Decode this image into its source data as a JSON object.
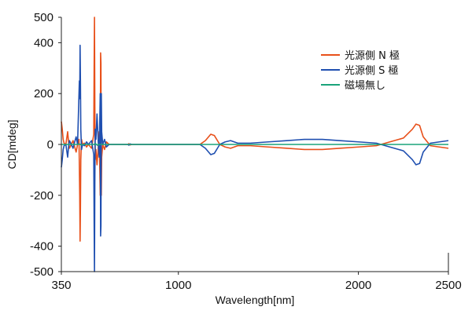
{
  "chart_data": {
    "type": "line",
    "title": "",
    "xlabel": "Wavelength[nm]",
    "ylabel": "CD[mdeg]",
    "xlim": [
      350,
      2500
    ],
    "ylim": [
      -500,
      500
    ],
    "x_ticks": [
      350,
      1000,
      2000,
      2500
    ],
    "x_tick_labels": [
      "350",
      "1000",
      "2000",
      "2500"
    ],
    "y_ticks": [
      500,
      400,
      200,
      0,
      -200,
      -400,
      -500
    ],
    "y_tick_labels": [
      "500",
      "400",
      "200",
      "0",
      "-200",
      "-400",
      "-500"
    ],
    "grid": false,
    "legend_position": "top-right",
    "series": [
      {
        "name": "光源側 N 極",
        "color": "#e8501a",
        "points": [
          [
            350,
            90
          ],
          [
            355,
            60
          ],
          [
            360,
            20
          ],
          [
            365,
            5
          ],
          [
            375,
            0
          ],
          [
            385,
            50
          ],
          [
            390,
            10
          ],
          [
            395,
            -15
          ],
          [
            405,
            0
          ],
          [
            415,
            15
          ],
          [
            420,
            0
          ],
          [
            432,
            -30
          ],
          [
            440,
            0
          ],
          [
            448,
            20
          ],
          [
            452,
            -200
          ],
          [
            454,
            -380
          ],
          [
            456,
            -250
          ],
          [
            458,
            -60
          ],
          [
            462,
            20
          ],
          [
            468,
            0
          ],
          [
            478,
            5
          ],
          [
            490,
            -10
          ],
          [
            500,
            0
          ],
          [
            518,
            -15
          ],
          [
            522,
            5
          ],
          [
            530,
            40
          ],
          [
            532,
            300
          ],
          [
            534,
            500
          ],
          [
            536,
            150
          ],
          [
            538,
            -60
          ],
          [
            542,
            -20
          ],
          [
            548,
            -80
          ],
          [
            555,
            -10
          ],
          [
            560,
            50
          ],
          [
            566,
            -200
          ],
          [
            568,
            360
          ],
          [
            570,
            320
          ],
          [
            572,
            -200
          ],
          [
            574,
            -50
          ],
          [
            580,
            0
          ],
          [
            590,
            -20
          ],
          [
            600,
            10
          ],
          [
            615,
            0
          ],
          [
            650,
            0
          ],
          [
            700,
            0
          ],
          [
            720,
            0
          ],
          [
            725,
            3
          ],
          [
            732,
            -2
          ],
          [
            740,
            0
          ],
          [
            850,
            0
          ],
          [
            1000,
            0
          ],
          [
            1120,
            0
          ],
          [
            1150,
            15
          ],
          [
            1180,
            40
          ],
          [
            1200,
            35
          ],
          [
            1230,
            0
          ],
          [
            1260,
            -10
          ],
          [
            1290,
            -15
          ],
          [
            1330,
            -5
          ],
          [
            1400,
            -5
          ],
          [
            1500,
            -10
          ],
          [
            1600,
            -15
          ],
          [
            1700,
            -20
          ],
          [
            1800,
            -20
          ],
          [
            1900,
            -15
          ],
          [
            2000,
            -10
          ],
          [
            2100,
            -5
          ],
          [
            2150,
            5
          ],
          [
            2250,
            25
          ],
          [
            2300,
            60
          ],
          [
            2320,
            80
          ],
          [
            2340,
            75
          ],
          [
            2360,
            30
          ],
          [
            2400,
            -5
          ],
          [
            2450,
            -10
          ],
          [
            2500,
            -15
          ]
        ]
      },
      {
        "name": "光源側 S 極",
        "color": "#1f4fb0",
        "points": [
          [
            350,
            -90
          ],
          [
            355,
            -60
          ],
          [
            360,
            -20
          ],
          [
            365,
            -5
          ],
          [
            375,
            0
          ],
          [
            385,
            -50
          ],
          [
            390,
            -10
          ],
          [
            395,
            15
          ],
          [
            405,
            0
          ],
          [
            415,
            -15
          ],
          [
            420,
            0
          ],
          [
            432,
            30
          ],
          [
            440,
            0
          ],
          [
            448,
            200
          ],
          [
            450,
            250
          ],
          [
            452,
            180
          ],
          [
            454,
            390
          ],
          [
            456,
            250
          ],
          [
            458,
            60
          ],
          [
            462,
            -20
          ],
          [
            468,
            0
          ],
          [
            478,
            -5
          ],
          [
            490,
            10
          ],
          [
            500,
            0
          ],
          [
            518,
            15
          ],
          [
            522,
            -5
          ],
          [
            530,
            -40
          ],
          [
            532,
            -300
          ],
          [
            534,
            -500
          ],
          [
            536,
            -150
          ],
          [
            538,
            60
          ],
          [
            542,
            20
          ],
          [
            548,
            120
          ],
          [
            555,
            10
          ],
          [
            560,
            -50
          ],
          [
            566,
            200
          ],
          [
            568,
            -360
          ],
          [
            570,
            -320
          ],
          [
            572,
            200
          ],
          [
            574,
            50
          ],
          [
            580,
            0
          ],
          [
            590,
            20
          ],
          [
            600,
            -10
          ],
          [
            615,
            0
          ],
          [
            650,
            0
          ],
          [
            700,
            0
          ],
          [
            720,
            0
          ],
          [
            725,
            -3
          ],
          [
            732,
            2
          ],
          [
            740,
            0
          ],
          [
            850,
            0
          ],
          [
            1000,
            0
          ],
          [
            1120,
            0
          ],
          [
            1150,
            -15
          ],
          [
            1180,
            -40
          ],
          [
            1200,
            -35
          ],
          [
            1230,
            0
          ],
          [
            1260,
            10
          ],
          [
            1290,
            15
          ],
          [
            1330,
            5
          ],
          [
            1400,
            5
          ],
          [
            1500,
            10
          ],
          [
            1600,
            15
          ],
          [
            1700,
            20
          ],
          [
            1800,
            20
          ],
          [
            1900,
            15
          ],
          [
            2000,
            10
          ],
          [
            2100,
            5
          ],
          [
            2150,
            -5
          ],
          [
            2250,
            -25
          ],
          [
            2300,
            -60
          ],
          [
            2320,
            -80
          ],
          [
            2340,
            -75
          ],
          [
            2360,
            -30
          ],
          [
            2400,
            5
          ],
          [
            2450,
            10
          ],
          [
            2500,
            15
          ]
        ]
      },
      {
        "name": "磁場無し",
        "color": "#1aa37a",
        "points": [
          [
            350,
            0
          ],
          [
            440,
            0
          ],
          [
            450,
            2
          ],
          [
            460,
            -2
          ],
          [
            470,
            0
          ],
          [
            530,
            0
          ],
          [
            540,
            3
          ],
          [
            550,
            -3
          ],
          [
            560,
            0
          ],
          [
            700,
            0
          ],
          [
            1000,
            0
          ],
          [
            1500,
            0
          ],
          [
            2000,
            0
          ],
          [
            2500,
            0
          ]
        ]
      }
    ]
  }
}
